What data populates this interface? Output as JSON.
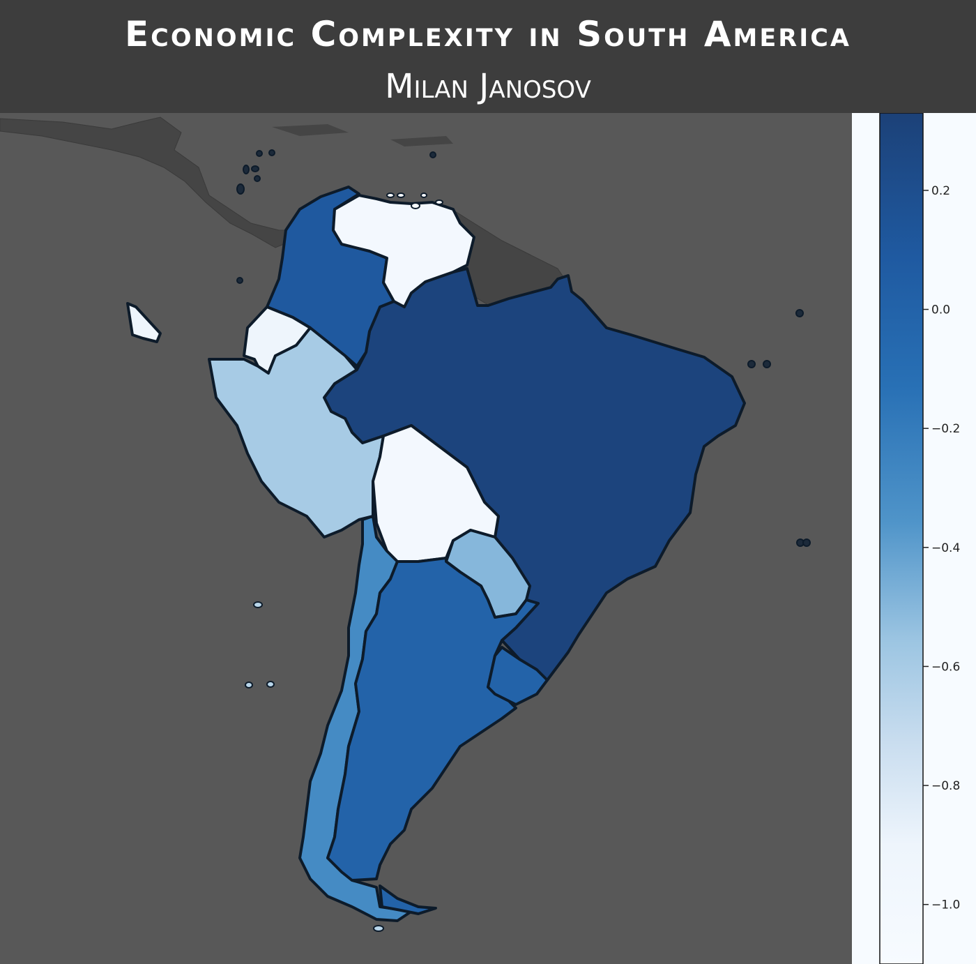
{
  "header": {
    "title": "Economic Complexity in South America",
    "subtitle": "Milan Janosov"
  },
  "colors": {
    "background_ocean": "#585858",
    "header_bg": "#3d3d3d",
    "land_other": "#444444",
    "border": "#0d1b2a",
    "scale_low": "#f7fbff",
    "scale_high": "#1c4178"
  },
  "map_data": {
    "type": "choropleth",
    "metric": "Economic Complexity",
    "color_scale": "Blues",
    "value_range": [
      -1.1,
      0.33
    ],
    "regions": [
      {
        "id": "brazil",
        "value": 0.3
      },
      {
        "id": "colombia",
        "value": 0.1
      },
      {
        "id": "venezuela",
        "value": -1.0
      },
      {
        "id": "ecuador",
        "value": -0.9
      },
      {
        "id": "peru",
        "value": -0.6
      },
      {
        "id": "bolivia",
        "value": -1.0
      },
      {
        "id": "paraguay",
        "value": -0.5
      },
      {
        "id": "chile",
        "value": -0.3
      },
      {
        "id": "argentina",
        "value": 0.0
      },
      {
        "id": "uruguay",
        "value": 0.0
      },
      {
        "id": "galapagos",
        "value": -0.9
      }
    ]
  },
  "colorbar": {
    "ticks": [
      {
        "value": 0.2,
        "label": "0.2"
      },
      {
        "value": 0.0,
        "label": "0.0"
      },
      {
        "value": -0.2,
        "label": "−0.2"
      },
      {
        "value": -0.4,
        "label": "−0.4"
      },
      {
        "value": -0.6,
        "label": "−0.6"
      },
      {
        "value": -0.8,
        "label": "−0.8"
      },
      {
        "value": -1.0,
        "label": "−1.0"
      }
    ]
  }
}
